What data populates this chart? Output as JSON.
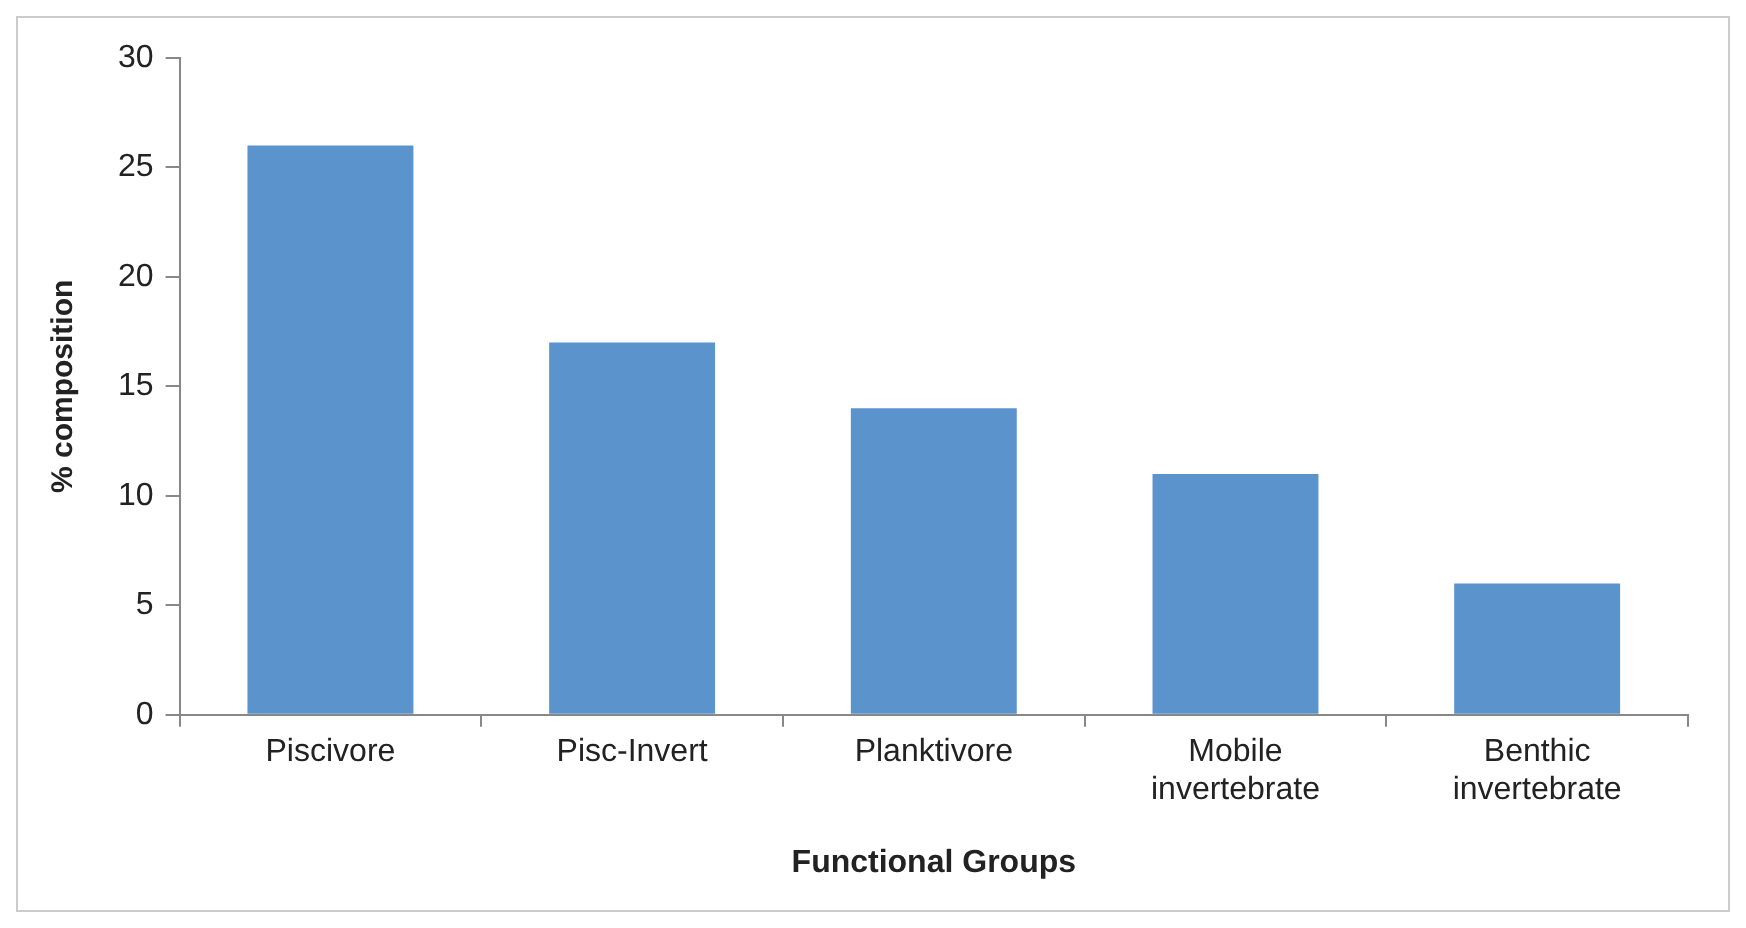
{
  "chart_data": {
    "type": "bar",
    "xlabel": "Functional Groups",
    "ylabel": "% composition",
    "categories": [
      "Piscivore",
      "Pisc-Invert",
      "Planktivore",
      "Mobile invertebrate",
      "Benthic invertebrate"
    ],
    "values": [
      26,
      17,
      14,
      11,
      6
    ],
    "color": "#5b93cc",
    "ylim": [
      0,
      30
    ],
    "yticks": [
      0,
      5,
      10,
      15,
      20,
      25,
      30
    ],
    "grid": false,
    "legend": false
  }
}
